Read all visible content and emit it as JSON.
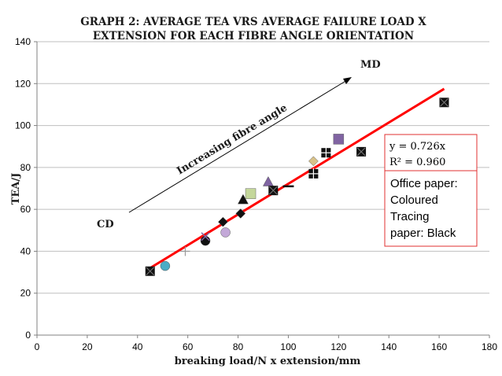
{
  "chart_data": {
    "type": "scatter",
    "title_line1": "GRAPH 2:  AVERAGE TEA VRS  AVERAGE FAILURE LOAD X",
    "title_line2": "EXTENSION FOR EACH FIBRE ANGLE ORIENTATION",
    "xlabel": "breaking load/N x extension/mm",
    "ylabel": "TEA/J",
    "xlim": [
      0,
      180
    ],
    "ylim": [
      0,
      140
    ],
    "x_ticks": [
      "0",
      "20",
      "40",
      "60",
      "80",
      "100",
      "120",
      "140",
      "160",
      "180"
    ],
    "y_ticks": [
      "0",
      "20",
      "40",
      "60",
      "80",
      "100",
      "120",
      "140"
    ],
    "grid": "horizontal",
    "points": [
      {
        "x": 45,
        "y": 30.5,
        "shape": "box-x",
        "color": "#111111"
      },
      {
        "x": 51,
        "y": 33,
        "shape": "circle",
        "color": "#4bacc6"
      },
      {
        "x": 59,
        "y": 40,
        "shape": "plus",
        "color": "#999999"
      },
      {
        "x": 67,
        "y": 45,
        "shape": "circle",
        "color": "#111111"
      },
      {
        "x": 67,
        "y": 47,
        "shape": "x",
        "color": "#8064a2"
      },
      {
        "x": 75,
        "y": 49,
        "shape": "circle",
        "color": "#c3a8d8"
      },
      {
        "x": 74,
        "y": 54,
        "shape": "diamond",
        "color": "#111111"
      },
      {
        "x": 81,
        "y": 58,
        "shape": "diamond",
        "color": "#111111"
      },
      {
        "x": 82,
        "y": 64.5,
        "shape": "triangle",
        "color": "#111111"
      },
      {
        "x": 85,
        "y": 67.5,
        "shape": "square",
        "color": "#c4d79b"
      },
      {
        "x": 92,
        "y": 73,
        "shape": "triangle",
        "color": "#8064a2"
      },
      {
        "x": 94,
        "y": 69,
        "shape": "box-x",
        "color": "#111111"
      },
      {
        "x": 100,
        "y": 71,
        "shape": "dash",
        "color": "#111111"
      },
      {
        "x": 110,
        "y": 77,
        "shape": "box-plus",
        "color": "#111111"
      },
      {
        "x": 110,
        "y": 83,
        "shape": "diamond",
        "color": "#d9c38a"
      },
      {
        "x": 115,
        "y": 87,
        "shape": "box-plus",
        "color": "#111111"
      },
      {
        "x": 120,
        "y": 93.5,
        "shape": "square",
        "color": "#8064a2"
      },
      {
        "x": 129,
        "y": 87.5,
        "shape": "box-x",
        "color": "#111111"
      },
      {
        "x": 162,
        "y": 111,
        "shape": "box-x",
        "color": "#111111"
      }
    ],
    "trendline": {
      "x": [
        45,
        162
      ],
      "y": [
        32,
        117.5
      ],
      "color": "#ff0000"
    },
    "equation_line1": "y = 0.726x",
    "equation_line2": "R² = 0.960",
    "legend_lines": [
      "Office paper:",
      "Coloured",
      "Tracing",
      "paper: Black"
    ],
    "annotation_arrow_text": "Increasing fibre angle",
    "annotation_md": "MD",
    "annotation_cd": "CD"
  }
}
